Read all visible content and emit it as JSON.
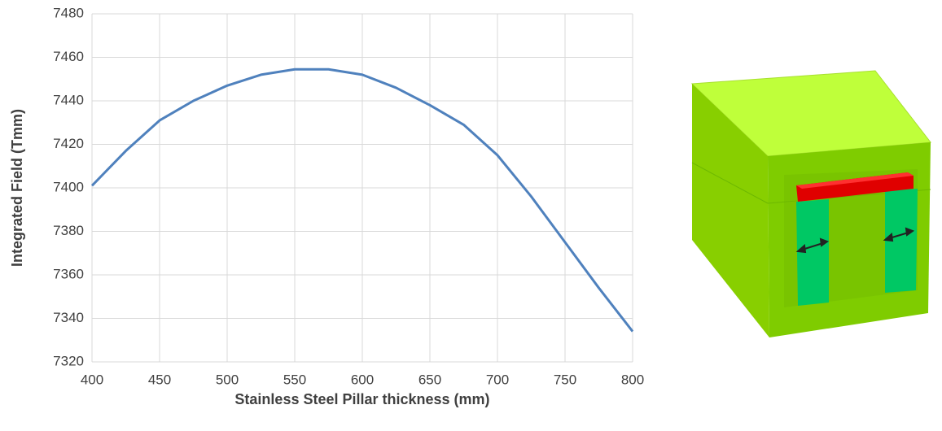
{
  "chart_data": {
    "type": "line",
    "x_label": "Stainless Steel Pillar thickness (mm)",
    "y_label": "Integrated Field (Tmm)",
    "x": [
      400,
      425,
      450,
      475,
      500,
      525,
      550,
      575,
      600,
      625,
      650,
      675,
      700,
      725,
      750,
      775,
      800
    ],
    "series": [
      {
        "color": "#4f81bd",
        "values": [
          7401,
          7417,
          7431,
          7440,
          7447,
          7452,
          7454.5,
          7454.5,
          7452,
          7446,
          7438,
          7429,
          7415,
          7396,
          7375,
          7354,
          7334
        ]
      }
    ],
    "xlim": [
      400,
      800
    ],
    "xticks": [
      400,
      450,
      500,
      550,
      600,
      650,
      700,
      750,
      800
    ],
    "ylim": [
      7320,
      7480
    ],
    "yticks": [
      7320,
      7340,
      7360,
      7380,
      7400,
      7420,
      7440,
      7460,
      7480
    ],
    "grid": true
  }
}
